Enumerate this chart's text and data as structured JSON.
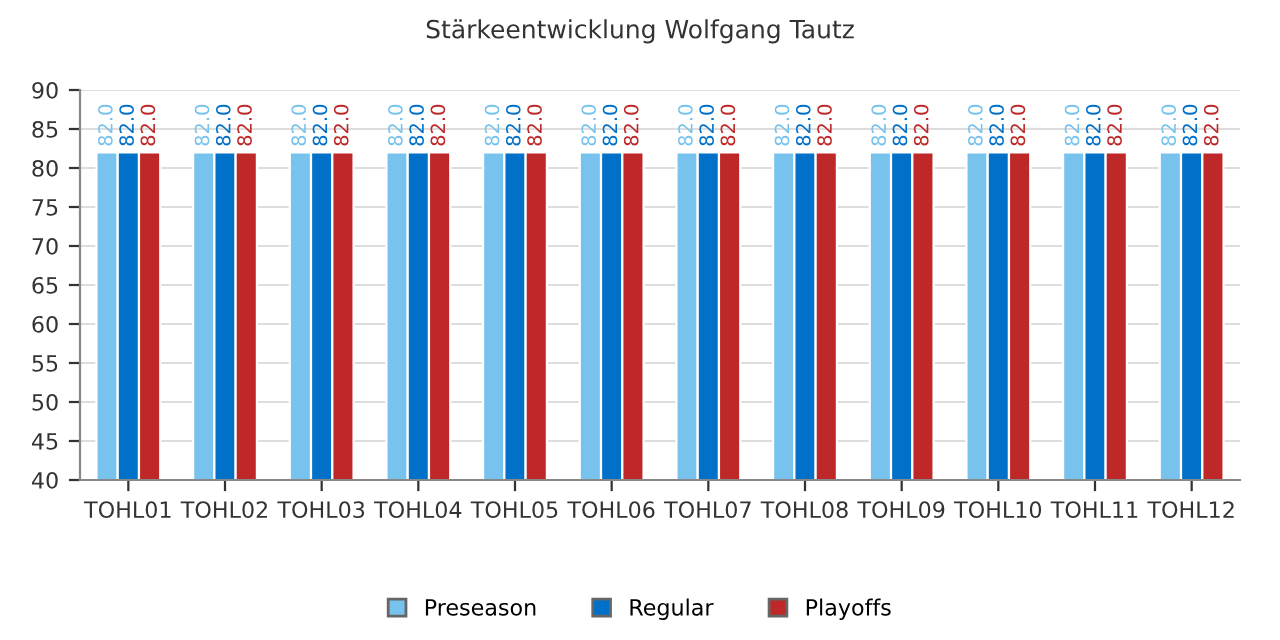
{
  "chart_data": {
    "type": "bar",
    "title": "Stärkeentwicklung Wolfgang Tautz",
    "categories": [
      "TOHL01",
      "TOHL02",
      "TOHL03",
      "TOHL04",
      "TOHL05",
      "TOHL06",
      "TOHL07",
      "TOHL08",
      "TOHL09",
      "TOHL10",
      "TOHL11",
      "TOHL12"
    ],
    "series": [
      {
        "name": "Preseason",
        "color": "#77c3ee",
        "values": [
          82,
          82,
          82,
          82,
          82,
          82,
          82,
          82,
          82,
          82,
          82,
          82
        ],
        "value_labels": [
          "82.0",
          "82.0",
          "82.0",
          "82.0",
          "82.0",
          "82.0",
          "82.0",
          "82.0",
          "82.0",
          "82.0",
          "82.0",
          "82.0"
        ]
      },
      {
        "name": "Regular",
        "color": "#0070c8",
        "values": [
          82,
          82,
          82,
          82,
          82,
          82,
          82,
          82,
          82,
          82,
          82,
          82
        ],
        "value_labels": [
          "82.0",
          "82.0",
          "82.0",
          "82.0",
          "82.0",
          "82.0",
          "82.0",
          "82.0",
          "82.0",
          "82.0",
          "82.0",
          "82.0"
        ]
      },
      {
        "name": "Playoffs",
        "color": "#be2828",
        "values": [
          82,
          82,
          82,
          82,
          82,
          82,
          82,
          82,
          82,
          82,
          82,
          82
        ],
        "value_labels": [
          "82.0",
          "82.0",
          "82.0",
          "82.0",
          "82.0",
          "82.0",
          "82.0",
          "82.0",
          "82.0",
          "82.0",
          "82.0",
          "82.0"
        ]
      }
    ],
    "ylim": [
      40,
      90
    ],
    "yticks": [
      40,
      45,
      50,
      55,
      60,
      65,
      70,
      75,
      80,
      85,
      90
    ],
    "grid": "y",
    "legend": "bottom"
  }
}
